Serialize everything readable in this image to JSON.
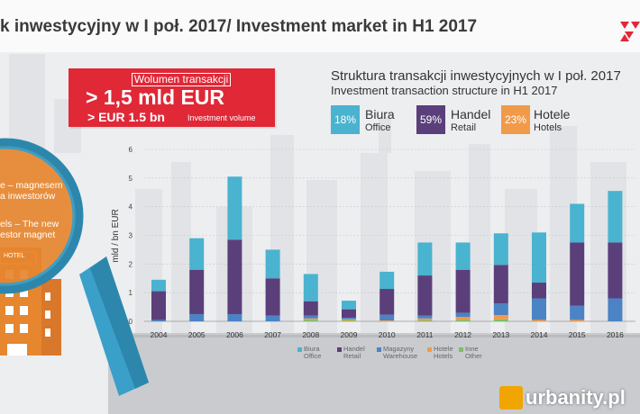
{
  "header": {
    "title": "k inwestycyjny w I poł. 2017/ Investment market in H1 2017"
  },
  "volume": {
    "label": "Wolumen transakcji",
    "value_pl": "> 1,5 mld EUR",
    "value_en": "> EUR 1.5 bn",
    "value_en_sub": "Investment volume"
  },
  "structure": {
    "title_pl": "Struktura transakcji inwestycyjnych w I poł. 2017",
    "title_en": "Investment transaction structure in H1 2017",
    "items": [
      {
        "pct": "18%",
        "label_pl": "Biura",
        "label_en": "Office",
        "color": "#4ab3cf"
      },
      {
        "pct": "59%",
        "label_pl": "Handel",
        "label_en": "Retail",
        "color": "#5b3f7a"
      },
      {
        "pct": "23%",
        "label_pl": "Hotele",
        "label_en": "Hotels",
        "color": "#f19a4a"
      }
    ]
  },
  "magnifier": {
    "line1": "e – magnesem",
    "line2": "a inwestorów",
    "line3": "els – The new",
    "line4": "estor magnet",
    "hotel_sign": "HOTEL"
  },
  "chart_data": {
    "type": "bar",
    "stacked": true,
    "categories": [
      "2004",
      "2005",
      "2006",
      "2007",
      "2008",
      "2009",
      "2010",
      "2011",
      "2012",
      "2013",
      "2014",
      "2015",
      "2016"
    ],
    "ylabel": "mld / bn EUR",
    "ylim": [
      0,
      6
    ],
    "yticks": [
      "0",
      "1",
      "2",
      "3",
      "4",
      "5",
      "6"
    ],
    "grid": true,
    "series": [
      {
        "name": "Inne Other",
        "color": "#7bbf6a",
        "values": [
          0,
          0,
          0,
          0,
          0.05,
          0.03,
          0,
          0.03,
          0.05,
          0.07,
          0,
          0,
          0
        ]
      },
      {
        "name": "Hotele Hotels",
        "color": "#f19a4a",
        "values": [
          0,
          0,
          0,
          0,
          0.05,
          0.04,
          0.03,
          0.07,
          0.1,
          0.15,
          0.05,
          0.05,
          0
        ]
      },
      {
        "name": "Magazyny Warehouse",
        "color": "#4b83c4",
        "values": [
          0.05,
          0.25,
          0.25,
          0.2,
          0.1,
          0.05,
          0.2,
          0.1,
          0.15,
          0.4,
          0.75,
          0.5,
          0.8
        ]
      },
      {
        "name": "Handel Retail",
        "color": "#5b3f7a",
        "values": [
          1.0,
          1.55,
          2.6,
          1.3,
          0.5,
          0.3,
          0.9,
          1.4,
          1.5,
          1.35,
          0.55,
          2.2,
          1.95
        ]
      },
      {
        "name": "Biura Office",
        "color": "#4ab3cf",
        "values": [
          0.4,
          1.1,
          2.2,
          1.0,
          0.95,
          0.3,
          0.6,
          1.15,
          0.95,
          1.1,
          1.75,
          1.35,
          1.8
        ]
      }
    ],
    "legend": [
      {
        "pl": "Biura",
        "en": "Office",
        "color": "#4ab3cf"
      },
      {
        "pl": "Handel",
        "en": "Retail",
        "color": "#5b3f7a"
      },
      {
        "pl": "Magazyny",
        "en": "Warehouse",
        "color": "#4b83c4"
      },
      {
        "pl": "Hotele",
        "en": "Hotels",
        "color": "#f19a4a"
      },
      {
        "pl": "Inne",
        "en": "Other",
        "color": "#7bbf6a"
      }
    ]
  },
  "watermark": {
    "text": "urbanity.pl"
  }
}
